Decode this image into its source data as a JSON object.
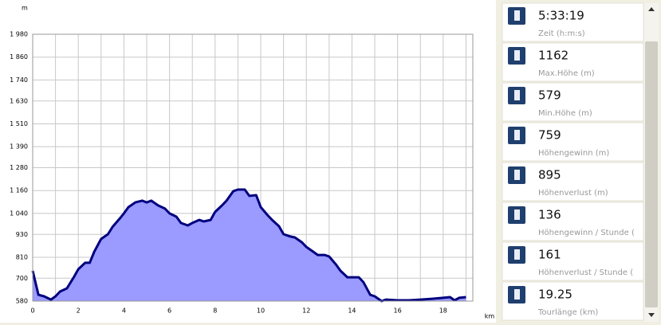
{
  "chart_data": {
    "type": "area",
    "y_label": "m",
    "x_label": "km",
    "color": "#00007f",
    "fill": "#9a9aff",
    "grid": true,
    "xlim": [
      0,
      19.3
    ],
    "ylim": [
      580,
      1980
    ],
    "xticks": [
      0,
      2,
      4,
      6,
      8,
      10,
      12,
      14,
      16,
      18
    ],
    "minor_xticks": [
      1,
      3,
      5,
      7,
      9,
      11,
      13,
      15,
      17,
      19
    ],
    "yticks": [
      580,
      700,
      810,
      930,
      {
        "value": 1040,
        "label": "1 040"
      },
      {
        "value": 1160,
        "label": "1 160"
      },
      {
        "value": 1280,
        "label": "1 280"
      },
      {
        "value": 1390,
        "label": "1 390"
      },
      {
        "value": 1510,
        "label": "1 510"
      },
      {
        "value": 1630,
        "label": "1 630"
      },
      {
        "value": 1740,
        "label": "1 740"
      },
      {
        "value": 1860,
        "label": "1 860"
      },
      {
        "value": 1980,
        "label": "1 980"
      }
    ],
    "x": [
      0,
      0.25,
      0.5,
      0.8,
      1.0,
      1.2,
      1.5,
      1.8,
      2.0,
      2.3,
      2.5,
      2.7,
      3.0,
      3.3,
      3.5,
      3.8,
      4.0,
      4.2,
      4.5,
      4.8,
      5.0,
      5.2,
      5.5,
      5.8,
      6.0,
      6.3,
      6.5,
      6.8,
      7.0,
      7.3,
      7.5,
      7.8,
      8.0,
      8.3,
      8.5,
      8.8,
      9.0,
      9.3,
      9.5,
      9.8,
      10.0,
      10.3,
      10.5,
      10.8,
      11.0,
      11.3,
      11.5,
      11.8,
      12.0,
      12.3,
      12.5,
      12.8,
      13.0,
      13.3,
      13.5,
      13.8,
      14.0,
      14.3,
      14.5,
      14.8,
      15.0,
      15.3,
      15.5,
      16.0,
      16.5,
      17.0,
      17.5,
      18.0,
      18.3,
      18.5,
      18.7,
      19.0
    ],
    "values": [
      739,
      613,
      605,
      588,
      605,
      630,
      647,
      705,
      747,
      781,
      781,
      839,
      906,
      931,
      969,
      1011,
      1040,
      1073,
      1098,
      1107,
      1098,
      1107,
      1082,
      1065,
      1040,
      1023,
      990,
      977,
      990,
      1006,
      998,
      1006,
      1048,
      1082,
      1107,
      1157,
      1165,
      1165,
      1132,
      1136,
      1073,
      1031,
      1006,
      973,
      931,
      919,
      914,
      889,
      864,
      839,
      822,
      822,
      814,
      772,
      739,
      705,
      705,
      705,
      680,
      613,
      605,
      580,
      588,
      584,
      584,
      588,
      592,
      597,
      601,
      584,
      597,
      601
    ]
  },
  "stats": [
    {
      "value": "5:33:19",
      "label": "Zeit (h:m:s)"
    },
    {
      "value": "1162",
      "label": "Max.Höhe (m)"
    },
    {
      "value": "579",
      "label": "Min.Höhe (m)"
    },
    {
      "value": "759",
      "label": "Höhengewinn (m)"
    },
    {
      "value": "895",
      "label": "Höhenverlust (m)"
    },
    {
      "value": "136",
      "label": "Höhengewinn  /  Stunde ("
    },
    {
      "value": "161",
      "label": "Höhenverlust  /  Stunde ("
    },
    {
      "value": "19.25",
      "label": "Tourlänge (km)"
    }
  ]
}
